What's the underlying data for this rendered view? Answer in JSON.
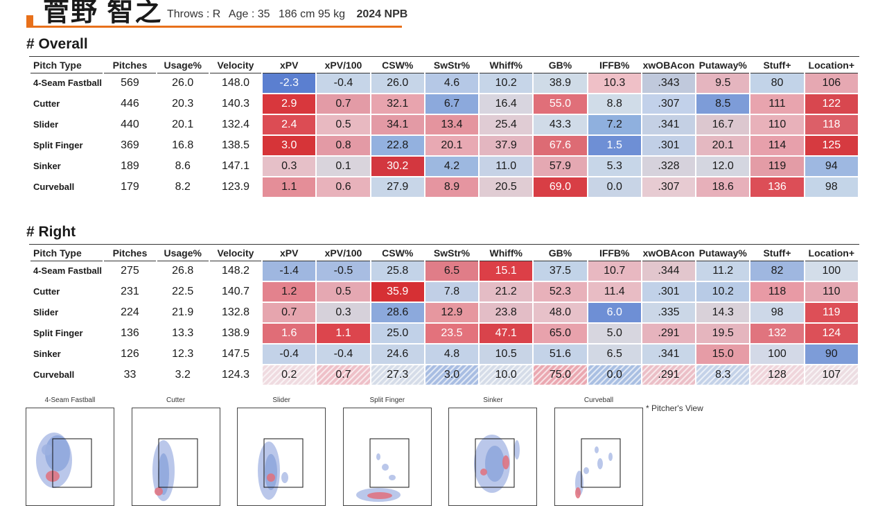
{
  "player": {
    "name": "菅野 智之",
    "throws": "Throws : R",
    "age": "Age : 35",
    "body": "186 cm 95 kg",
    "season": "2024 NPB"
  },
  "colors": {
    "accent": "#e8701a"
  },
  "columns": [
    "Pitch Type",
    "Pitches",
    "Usage%",
    "Velocity",
    "xPV",
    "xPV/100",
    "CSW%",
    "SwStr%",
    "Whiff%",
    "GB%",
    "IFFB%",
    "xwOBAcon",
    "Putaway%",
    "Stuff+",
    "Location+"
  ],
  "overall": {
    "title": "# Overall",
    "rows": [
      {
        "cells": [
          "4-Seam Fastball",
          "569",
          "26.0",
          "148.0",
          "-2.3",
          "-0.4",
          "26.0",
          "4.6",
          "10.2",
          "38.9",
          "10.3",
          ".343",
          "9.5",
          "80",
          "106"
        ],
        "colors": [
          "#5b7fd0",
          "#c6d5e8",
          "#c6d5e8",
          "#b5c8e6",
          "#c6d5e8",
          "#cfdbe7",
          "#efc0c7",
          "#c0c9dc",
          "#e5b5bf",
          "#c2d3e8",
          "#e6a8b2"
        ]
      },
      {
        "cells": [
          "Cutter",
          "446",
          "20.3",
          "140.3",
          "2.9",
          "0.7",
          "32.1",
          "6.7",
          "16.4",
          "55.0",
          "8.8",
          ".307",
          "8.5",
          "111",
          "122"
        ],
        "colors": [
          "#d8373d",
          "#e39ba6",
          "#e8a4ae",
          "#8ca9dc",
          "#d8d5df",
          "#e06f79",
          "#d0dce8",
          "#c2d1ea",
          "#7d9cd8",
          "#e8a4ae",
          "#d8474f"
        ]
      },
      {
        "cells": [
          "Slider",
          "440",
          "20.1",
          "132.4",
          "2.4",
          "0.5",
          "34.1",
          "13.4",
          "25.4",
          "43.3",
          "7.2",
          ".341",
          "16.7",
          "110",
          "118"
        ],
        "colors": [
          "#dc4c54",
          "#e8b9c1",
          "#e39aa5",
          "#e4949e",
          "#e0ccd4",
          "#d0dbe8",
          "#8fb0de",
          "#c4d0e4",
          "#dcc7cf",
          "#e8b1ba",
          "#dc5f68"
        ]
      },
      {
        "cells": [
          "Split Finger",
          "369",
          "16.8",
          "138.5",
          "3.0",
          "0.8",
          "22.8",
          "20.1",
          "37.9",
          "67.6",
          "1.5",
          ".301",
          "20.1",
          "114",
          "125"
        ],
        "colors": [
          "#d63438",
          "#e39aa5",
          "#93b1df",
          "#e8a9b3",
          "#e3b6c0",
          "#dd6b74",
          "#6e8fd5",
          "#c1cfe6",
          "#e4b8c1",
          "#e7a0ab",
          "#d63a40"
        ]
      },
      {
        "cells": [
          "Sinker",
          "189",
          "8.6",
          "147.1",
          "0.3",
          "0.1",
          "30.2",
          "4.2",
          "11.0",
          "57.9",
          "5.3",
          ".328",
          "12.0",
          "119",
          "94"
        ],
        "colors": [
          "#e6c0c8",
          "#d9d4dc",
          "#d3373f",
          "#9db8e0",
          "#c6d2e6",
          "#e4a8b2",
          "#c7d6e8",
          "#d6d2dc",
          "#d4d6e0",
          "#e39ca6",
          "#9eb8e1"
        ]
      },
      {
        "cells": [
          "Curveball",
          "179",
          "8.2",
          "123.9",
          "1.1",
          "0.6",
          "27.9",
          "8.9",
          "20.5",
          "69.0",
          "0.0",
          ".307",
          "18.6",
          "136",
          "98"
        ],
        "colors": [
          "#e48e98",
          "#e8b2bb",
          "#c8d6e8",
          "#e595a0",
          "#e0ccd3",
          "#d83e45",
          "#c8d4e6",
          "#e7cbd2",
          "#e7b0ba",
          "#dc4e57",
          "#c4d5e8"
        ]
      }
    ]
  },
  "right": {
    "title": "# Right",
    "rows": [
      {
        "cells": [
          "4-Seam Fastball",
          "275",
          "26.8",
          "148.2",
          "-1.4",
          "-0.5",
          "25.8",
          "6.5",
          "15.1",
          "37.5",
          "10.7",
          ".344",
          "11.2",
          "82",
          "100"
        ],
        "colors": [
          "#9fb7e0",
          "#a8bde2",
          "#c3d3e8",
          "#e07d88",
          "#dc3f47",
          "#c2d3e8",
          "#e8b8c1",
          "#e2c6cd",
          "#c6d5e8",
          "#9fb7e0",
          "#d3dde9"
        ]
      },
      {
        "cells": [
          "Cutter",
          "231",
          "22.5",
          "140.7",
          "1.2",
          "0.5",
          "35.9",
          "7.8",
          "21.2",
          "52.3",
          "11.4",
          ".301",
          "10.2",
          "118",
          "110"
        ],
        "colors": [
          "#e3828d",
          "#e5a8b2",
          "#d63034",
          "#c1cfe6",
          "#e4bcc5",
          "#e8b1ba",
          "#e8bcc4",
          "#c1d1e8",
          "#b8cbe6",
          "#e89aa5",
          "#e6a9b3"
        ]
      },
      {
        "cells": [
          "Slider",
          "224",
          "21.9",
          "132.8",
          "0.7",
          "0.3",
          "28.6",
          "12.9",
          "23.8",
          "48.0",
          "6.0",
          ".335",
          "14.3",
          "98",
          "119"
        ],
        "colors": [
          "#e6a5ae",
          "#d6d1da",
          "#8ca9dc",
          "#e6979f",
          "#e3bdc6",
          "#e7c1c9",
          "#6e8fd5",
          "#cbd7e7",
          "#d9d1d9",
          "#cdd8e8",
          "#dd4f57"
        ]
      },
      {
        "cells": [
          "Split Finger",
          "136",
          "13.3",
          "138.9",
          "1.6",
          "1.1",
          "25.0",
          "23.5",
          "47.1",
          "65.0",
          "5.0",
          ".291",
          "19.5",
          "132",
          "124"
        ],
        "colors": [
          "#e06d77",
          "#dc454d",
          "#c1d1e8",
          "#e3727c",
          "#d9434b",
          "#e8a2ac",
          "#d7d6df",
          "#e6b3bd",
          "#e5b5be",
          "#e0747e",
          "#dc5058"
        ]
      },
      {
        "cells": [
          "Sinker",
          "126",
          "12.3",
          "147.5",
          "-0.4",
          "-0.4",
          "24.6",
          "4.8",
          "10.5",
          "51.6",
          "6.5",
          ".341",
          "15.0",
          "100",
          "90"
        ],
        "colors": [
          "#c3d2e8",
          "#c7d5e8",
          "#c6d4e8",
          "#c3d2e8",
          "#c8d4e6",
          "#c4d3e8",
          "#d2d8e4",
          "#c8d6e8",
          "#e69ca6",
          "#d3d9e7",
          "#7d9cd8"
        ]
      },
      {
        "cells": [
          "Curveball",
          "33",
          "3.2",
          "124.3",
          "0.2",
          "0.7",
          "27.3",
          "3.0",
          "10.0",
          "75.0",
          "0.0",
          ".291",
          "8.3",
          "128",
          "107"
        ],
        "colors": [
          "#efdbe0",
          "#eec0c8",
          "#d5dce8",
          "#a8bde2",
          "#d5dce8",
          "#eaa8b1",
          "#a9bfe2",
          "#ebbfc7",
          "#c4d2e8",
          "#efd5db",
          "#ecdde2"
        ],
        "hatched": true
      }
    ]
  },
  "heatmaps": {
    "note": "* Pitcher's View",
    "labels": [
      "4-Seam Fastball",
      "Cutter",
      "Slider",
      "Split Finger",
      "Sinker",
      "Curveball"
    ]
  }
}
